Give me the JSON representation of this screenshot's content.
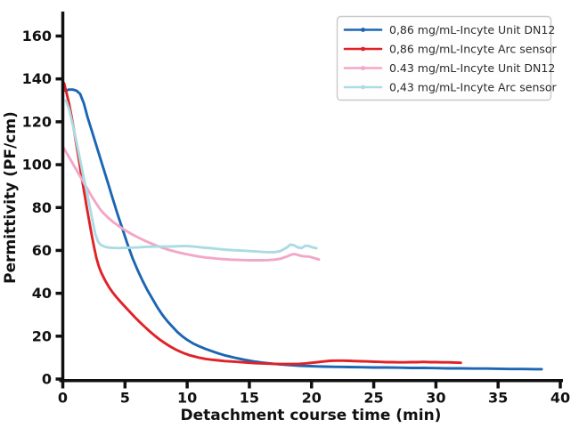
{
  "figure": {
    "background": "#ffffff",
    "axis_color": "#111111"
  },
  "chart_data": {
    "type": "line",
    "title": "",
    "xlabel": "Detachment course time (min)",
    "ylabel": "Permittivity (PF/cm)",
    "xlim": [
      0,
      40
    ],
    "ylim": [
      0,
      171
    ],
    "x_ticks": [
      0,
      5,
      10,
      15,
      20,
      25,
      30,
      35,
      40
    ],
    "y_ticks": [
      0,
      20,
      40,
      60,
      80,
      100,
      120,
      140,
      160
    ],
    "grid": false,
    "legend_position": "upper right",
    "legend_border_color": "#c9c9c9",
    "legend_background": "#fefefe",
    "series": [
      {
        "name": "0,86 mg/mL-Incyte Unit DN12",
        "color": "#1b66b3",
        "points": [
          [
            0.2,
            134.5
          ],
          [
            0.5,
            135
          ],
          [
            0.8,
            135
          ],
          [
            1.1,
            134.5
          ],
          [
            1.4,
            133
          ],
          [
            1.7,
            128.5
          ],
          [
            2,
            122
          ],
          [
            2.4,
            114.5
          ],
          [
            2.8,
            107
          ],
          [
            3.2,
            99.5
          ],
          [
            3.6,
            92
          ],
          [
            4,
            84.5
          ],
          [
            4.4,
            77
          ],
          [
            4.8,
            70
          ],
          [
            5.2,
            63
          ],
          [
            5.6,
            56.5
          ],
          [
            6,
            51
          ],
          [
            6.4,
            46
          ],
          [
            6.8,
            41.5
          ],
          [
            7.2,
            37.5
          ],
          [
            7.6,
            33.5
          ],
          [
            8,
            30
          ],
          [
            8.4,
            27
          ],
          [
            8.8,
            24.5
          ],
          [
            9.2,
            22
          ],
          [
            9.6,
            20
          ],
          [
            10,
            18.3
          ],
          [
            10.5,
            16.5
          ],
          [
            11,
            15.2
          ],
          [
            11.5,
            14
          ],
          [
            12,
            13
          ],
          [
            12.5,
            12
          ],
          [
            13,
            11.1
          ],
          [
            13.5,
            10.4
          ],
          [
            14,
            9.7
          ],
          [
            14.5,
            9.1
          ],
          [
            15,
            8.6
          ],
          [
            15.5,
            8.1
          ],
          [
            16,
            7.7
          ],
          [
            16.5,
            7.4
          ],
          [
            17,
            7.1
          ],
          [
            17.5,
            6.8
          ],
          [
            18,
            6.6
          ],
          [
            18.5,
            6.4
          ],
          [
            19,
            6.2
          ],
          [
            19.5,
            6.1
          ],
          [
            20,
            6
          ],
          [
            20.5,
            5.9
          ],
          [
            21,
            5.8
          ],
          [
            22,
            5.7
          ],
          [
            23,
            5.6
          ],
          [
            24,
            5.5
          ],
          [
            25,
            5.4
          ],
          [
            26,
            5.4
          ],
          [
            27,
            5.3
          ],
          [
            28,
            5.2
          ],
          [
            29,
            5.2
          ],
          [
            30,
            5.1
          ],
          [
            31,
            5
          ],
          [
            32,
            5
          ],
          [
            33,
            4.9
          ],
          [
            34,
            4.9
          ],
          [
            35,
            4.8
          ],
          [
            36,
            4.7
          ],
          [
            37,
            4.7
          ],
          [
            38,
            4.6
          ],
          [
            38.5,
            4.6
          ]
        ]
      },
      {
        "name": "0,86 mg/mL-Incyte Arc sensor",
        "color": "#e02227",
        "points": [
          [
            0.1,
            138
          ],
          [
            0.3,
            133.5
          ],
          [
            0.5,
            128.5
          ],
          [
            0.7,
            122.5
          ],
          [
            0.9,
            116
          ],
          [
            1.1,
            109
          ],
          [
            1.3,
            102
          ],
          [
            1.5,
            95
          ],
          [
            1.7,
            88
          ],
          [
            1.9,
            81
          ],
          [
            2.1,
            74.5
          ],
          [
            2.3,
            68
          ],
          [
            2.5,
            62
          ],
          [
            2.7,
            56.5
          ],
          [
            2.9,
            52.5
          ],
          [
            3.1,
            49.5
          ],
          [
            3.4,
            46
          ],
          [
            3.7,
            43
          ],
          [
            4,
            40.5
          ],
          [
            4.3,
            38.3
          ],
          [
            4.6,
            36.3
          ],
          [
            5,
            33.8
          ],
          [
            5.4,
            31.3
          ],
          [
            5.8,
            28.8
          ],
          [
            6.2,
            26.5
          ],
          [
            6.6,
            24.3
          ],
          [
            7,
            22.2
          ],
          [
            7.4,
            20.2
          ],
          [
            7.8,
            18.4
          ],
          [
            8.2,
            16.8
          ],
          [
            8.6,
            15.3
          ],
          [
            9,
            14
          ],
          [
            9.4,
            12.9
          ],
          [
            9.8,
            11.9
          ],
          [
            10.2,
            11.1
          ],
          [
            10.6,
            10.5
          ],
          [
            11,
            9.9
          ],
          [
            11.5,
            9.4
          ],
          [
            12,
            9
          ],
          [
            12.5,
            8.7
          ],
          [
            13,
            8.4
          ],
          [
            13.5,
            8.2
          ],
          [
            14,
            8
          ],
          [
            14.5,
            7.8
          ],
          [
            15,
            7.6
          ],
          [
            15.5,
            7.4
          ],
          [
            16,
            7.3
          ],
          [
            16.5,
            7.2
          ],
          [
            17,
            7.1
          ],
          [
            17.5,
            7
          ],
          [
            18,
            7
          ],
          [
            18.5,
            7
          ],
          [
            19,
            7.1
          ],
          [
            19.5,
            7.3
          ],
          [
            20,
            7.6
          ],
          [
            20.5,
            7.9
          ],
          [
            21,
            8.2
          ],
          [
            21.5,
            8.5
          ],
          [
            22,
            8.6
          ],
          [
            22.5,
            8.6
          ],
          [
            23,
            8.5
          ],
          [
            23.5,
            8.4
          ],
          [
            24,
            8.3
          ],
          [
            24.5,
            8.2
          ],
          [
            25,
            8.1
          ],
          [
            25.5,
            8
          ],
          [
            26,
            7.9
          ],
          [
            26.5,
            7.9
          ],
          [
            27,
            7.8
          ],
          [
            27.5,
            7.8
          ],
          [
            28,
            7.9
          ],
          [
            28.5,
            7.9
          ],
          [
            29,
            8
          ],
          [
            29.5,
            7.9
          ],
          [
            30,
            7.9
          ],
          [
            30.5,
            7.8
          ],
          [
            31,
            7.8
          ],
          [
            31.5,
            7.7
          ],
          [
            32,
            7.6
          ]
        ]
      },
      {
        "name": "0.43 mg/mL-Incyte Unit DN12",
        "color": "#f2a7c6",
        "points": [
          [
            0.05,
            108
          ],
          [
            0.3,
            105.5
          ],
          [
            0.6,
            102.5
          ],
          [
            0.9,
            99.5
          ],
          [
            1.2,
            96.5
          ],
          [
            1.5,
            93.5
          ],
          [
            1.8,
            90.5
          ],
          [
            2.1,
            87.5
          ],
          [
            2.4,
            84.5
          ],
          [
            2.7,
            81.8
          ],
          [
            3,
            79.2
          ],
          [
            3.3,
            77.2
          ],
          [
            3.6,
            75.5
          ],
          [
            4,
            73.5
          ],
          [
            4.4,
            71.8
          ],
          [
            4.8,
            70.2
          ],
          [
            5.2,
            68.8
          ],
          [
            5.6,
            67.4
          ],
          [
            6,
            66.2
          ],
          [
            6.5,
            64.8
          ],
          [
            7,
            63.5
          ],
          [
            7.5,
            62.3
          ],
          [
            8,
            61.2
          ],
          [
            8.5,
            60.3
          ],
          [
            9,
            59.5
          ],
          [
            9.5,
            58.8
          ],
          [
            10,
            58.2
          ],
          [
            10.5,
            57.6
          ],
          [
            11,
            57.1
          ],
          [
            11.5,
            56.7
          ],
          [
            12,
            56.4
          ],
          [
            12.5,
            56.1
          ],
          [
            13,
            55.9
          ],
          [
            13.5,
            55.7
          ],
          [
            14,
            55.6
          ],
          [
            14.5,
            55.5
          ],
          [
            15,
            55.4
          ],
          [
            15.5,
            55.4
          ],
          [
            16,
            55.4
          ],
          [
            16.5,
            55.5
          ],
          [
            17,
            55.7
          ],
          [
            17.5,
            56.1
          ],
          [
            18,
            57.1
          ],
          [
            18.3,
            57.9
          ],
          [
            18.6,
            58.3
          ],
          [
            18.9,
            57.9
          ],
          [
            19.2,
            57.4
          ],
          [
            19.5,
            57.2
          ],
          [
            19.8,
            57.1
          ],
          [
            20.1,
            56.6
          ],
          [
            20.4,
            56.1
          ],
          [
            20.6,
            55.8
          ]
        ]
      },
      {
        "name": "0,43 mg/mL-Incyte Arc sensor",
        "color": "#abdbe4",
        "points": [
          [
            0.25,
            130
          ],
          [
            0.5,
            126
          ],
          [
            0.8,
            118.5
          ],
          [
            1.1,
            110.5
          ],
          [
            1.4,
            102
          ],
          [
            1.7,
            93.5
          ],
          [
            2,
            85.5
          ],
          [
            2.2,
            79.5
          ],
          [
            2.4,
            73.5
          ],
          [
            2.6,
            68
          ],
          [
            2.8,
            64.5
          ],
          [
            3,
            62.8
          ],
          [
            3.3,
            61.9
          ],
          [
            3.6,
            61.4
          ],
          [
            4,
            61.2
          ],
          [
            4.5,
            61.1
          ],
          [
            5,
            61.2
          ],
          [
            5.5,
            61.3
          ],
          [
            6,
            61.4
          ],
          [
            6.5,
            61.6
          ],
          [
            7,
            61.7
          ],
          [
            7.5,
            61.8
          ],
          [
            8,
            61.8
          ],
          [
            8.5,
            61.8
          ],
          [
            9,
            61.9
          ],
          [
            9.5,
            62
          ],
          [
            10,
            62
          ],
          [
            10.5,
            61.8
          ],
          [
            11,
            61.5
          ],
          [
            11.5,
            61.2
          ],
          [
            12,
            61
          ],
          [
            12.5,
            60.7
          ],
          [
            13,
            60.4
          ],
          [
            13.5,
            60.2
          ],
          [
            14,
            60
          ],
          [
            14.5,
            59.9
          ],
          [
            15,
            59.7
          ],
          [
            15.5,
            59.5
          ],
          [
            16,
            59.3
          ],
          [
            16.5,
            59.2
          ],
          [
            17,
            59.2
          ],
          [
            17.5,
            59.7
          ],
          [
            18,
            61.3
          ],
          [
            18.3,
            62.7
          ],
          [
            18.6,
            62.4
          ],
          [
            18.9,
            61.4
          ],
          [
            19.2,
            61.1
          ],
          [
            19.5,
            62.2
          ],
          [
            19.8,
            62
          ],
          [
            20.1,
            61.4
          ],
          [
            20.4,
            61
          ]
        ]
      }
    ]
  }
}
